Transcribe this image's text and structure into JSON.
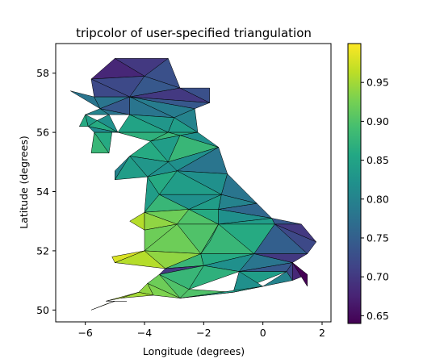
{
  "chart_data": {
    "type": "heatmap",
    "subtype": "tripcolor",
    "title": "tripcolor of user-specified triangulation",
    "xlabel": "Longitude (degrees)",
    "ylabel": "Latitude (degrees)",
    "xlim": [
      -7.0,
      2.3
    ],
    "ylim": [
      49.6,
      59.0
    ],
    "xticks": [
      -6,
      -4,
      -2,
      0,
      2
    ],
    "xtick_labels": [
      "−6",
      "−4",
      "−2",
      "0",
      "2"
    ],
    "yticks": [
      50,
      52,
      54,
      56,
      58
    ],
    "ytick_labels": [
      "50",
      "52",
      "54",
      "56",
      "58"
    ],
    "colormap": "viridis",
    "clim": [
      0.64,
      1.0
    ],
    "colorbar_ticks": [
      0.65,
      0.7,
      0.75,
      0.8,
      0.85,
      0.9,
      0.95
    ],
    "colorbar_tick_labels": [
      "0.65",
      "0.70",
      "0.75",
      "0.80",
      "0.85",
      "0.90",
      "0.95"
    ],
    "edge_color": "#000000",
    "points": [
      [
        -5.0,
        58.5
      ],
      [
        -3.2,
        58.5
      ],
      [
        -4.0,
        57.9
      ],
      [
        -5.8,
        57.8
      ],
      [
        -4.5,
        57.2
      ],
      [
        -2.8,
        57.5
      ],
      [
        -1.8,
        57.5
      ],
      [
        -1.8,
        57.0
      ],
      [
        -5.7,
        57.2
      ],
      [
        -6.5,
        57.4
      ],
      [
        -5.5,
        56.8
      ],
      [
        -6.0,
        56.6
      ],
      [
        -5.2,
        56.6
      ],
      [
        -4.5,
        56.6
      ],
      [
        -3.0,
        56.5
      ],
      [
        -2.3,
        56.8
      ],
      [
        -5.6,
        56.4
      ],
      [
        -6.2,
        56.2
      ],
      [
        -5.9,
        56.2
      ],
      [
        -4.9,
        56.0
      ],
      [
        -3.2,
        56.0
      ],
      [
        -2.2,
        56.0
      ],
      [
        -5.7,
        56.0
      ],
      [
        -5.1,
        56.0
      ],
      [
        -5.8,
        55.3
      ],
      [
        -5.2,
        55.3
      ],
      [
        -3.8,
        55.7
      ],
      [
        -2.8,
        55.9
      ],
      [
        -1.5,
        55.5
      ],
      [
        -4.5,
        55.2
      ],
      [
        -3.2,
        55.0
      ],
      [
        -5.0,
        54.7
      ],
      [
        -3.9,
        54.5
      ],
      [
        -2.9,
        54.7
      ],
      [
        -1.2,
        54.6
      ],
      [
        -5.0,
        54.4
      ],
      [
        -3.5,
        53.9
      ],
      [
        -1.4,
        53.9
      ],
      [
        -0.2,
        53.6
      ],
      [
        -2.5,
        53.4
      ],
      [
        -1.5,
        53.4
      ],
      [
        0.3,
        53.1
      ],
      [
        -4.0,
        53.3
      ],
      [
        -2.9,
        52.9
      ],
      [
        -1.5,
        52.9
      ],
      [
        -4.5,
        53.0
      ],
      [
        -4.0,
        52.7
      ],
      [
        0.4,
        52.9
      ],
      [
        1.3,
        52.9
      ],
      [
        1.8,
        52.3
      ],
      [
        -4.0,
        52.0
      ],
      [
        -2.1,
        51.9
      ],
      [
        -0.3,
        51.9
      ],
      [
        1.5,
        51.9
      ],
      [
        1.0,
        51.6
      ],
      [
        -5.1,
        51.8
      ],
      [
        -3.3,
        51.4
      ],
      [
        -2.0,
        51.5
      ],
      [
        -0.8,
        51.3
      ],
      [
        0.8,
        51.3
      ],
      [
        1.0,
        51.0
      ],
      [
        1.5,
        51.2
      ],
      [
        1.5,
        50.8
      ],
      [
        -5.0,
        51.6
      ],
      [
        -3.5,
        51.2
      ],
      [
        -2.5,
        50.7
      ],
      [
        -1.0,
        50.6
      ],
      [
        0.0,
        50.8
      ],
      [
        -3.9,
        50.9
      ],
      [
        -4.2,
        50.6
      ],
      [
        -5.8,
        50.0
      ],
      [
        -5.0,
        50.3
      ],
      [
        -4.6,
        50.3
      ],
      [
        -2.8,
        50.4
      ],
      [
        -3.7,
        50.5
      ],
      [
        -4.8,
        50.4
      ],
      [
        -5.3,
        50.3
      ],
      [
        -5.3,
        50.2
      ],
      [
        -1.8,
        52.3
      ]
    ],
    "triangles": [
      [
        0,
        1,
        2
      ],
      [
        0,
        3,
        2
      ],
      [
        3,
        4,
        2
      ],
      [
        2,
        4,
        5
      ],
      [
        2,
        1,
        5
      ],
      [
        5,
        6,
        7
      ],
      [
        4,
        5,
        7
      ],
      [
        3,
        8,
        4
      ],
      [
        9,
        8,
        10
      ],
      [
        8,
        10,
        4
      ],
      [
        10,
        11,
        12
      ],
      [
        10,
        12,
        13
      ],
      [
        10,
        4,
        13
      ],
      [
        4,
        13,
        14
      ],
      [
        4,
        14,
        15
      ],
      [
        4,
        15,
        7
      ],
      [
        11,
        17,
        18
      ],
      [
        11,
        16,
        18
      ],
      [
        12,
        16,
        19
      ],
      [
        16,
        18,
        19
      ],
      [
        13,
        14,
        20
      ],
      [
        14,
        15,
        21
      ],
      [
        14,
        20,
        21
      ],
      [
        13,
        19,
        20
      ],
      [
        18,
        22,
        19
      ],
      [
        22,
        24,
        25
      ],
      [
        22,
        23,
        25
      ],
      [
        19,
        20,
        26
      ],
      [
        20,
        21,
        27
      ],
      [
        20,
        26,
        27
      ],
      [
        21,
        27,
        28
      ],
      [
        26,
        27,
        30
      ],
      [
        27,
        28,
        30
      ],
      [
        26,
        29,
        30
      ],
      [
        29,
        31,
        35
      ],
      [
        29,
        30,
        32
      ],
      [
        29,
        32,
        35
      ],
      [
        30,
        32,
        33
      ],
      [
        30,
        28,
        33
      ],
      [
        28,
        33,
        34
      ],
      [
        32,
        33,
        36
      ],
      [
        33,
        34,
        37
      ],
      [
        33,
        36,
        37
      ],
      [
        34,
        37,
        38
      ],
      [
        32,
        36,
        42
      ],
      [
        36,
        37,
        39
      ],
      [
        37,
        39,
        40
      ],
      [
        37,
        38,
        40
      ],
      [
        38,
        40,
        41
      ],
      [
        36,
        42,
        39
      ],
      [
        42,
        45,
        46
      ],
      [
        42,
        46,
        43
      ],
      [
        42,
        39,
        43
      ],
      [
        39,
        43,
        44
      ],
      [
        39,
        40,
        44
      ],
      [
        40,
        44,
        41
      ],
      [
        44,
        41,
        47
      ],
      [
        41,
        47,
        48
      ],
      [
        47,
        48,
        49
      ],
      [
        43,
        44,
        51
      ],
      [
        44,
        47,
        52
      ],
      [
        44,
        51,
        52
      ],
      [
        47,
        49,
        53
      ],
      [
        47,
        52,
        53
      ],
      [
        52,
        53,
        54
      ],
      [
        46,
        43,
        50
      ],
      [
        43,
        51,
        50
      ],
      [
        50,
        55,
        63
      ],
      [
        50,
        63,
        56
      ],
      [
        50,
        51,
        56
      ],
      [
        51,
        56,
        57
      ],
      [
        51,
        52,
        57
      ],
      [
        52,
        57,
        58
      ],
      [
        52,
        54,
        58
      ],
      [
        54,
        58,
        59
      ],
      [
        54,
        59,
        60
      ],
      [
        54,
        60,
        61
      ],
      [
        54,
        61,
        62
      ],
      [
        56,
        57,
        64
      ],
      [
        57,
        58,
        65
      ],
      [
        58,
        59,
        66
      ],
      [
        59,
        60,
        67
      ],
      [
        58,
        66,
        67
      ],
      [
        57,
        64,
        65
      ],
      [
        64,
        65,
        73
      ],
      [
        64,
        68,
        73
      ],
      [
        68,
        69,
        74
      ],
      [
        68,
        73,
        74
      ],
      [
        69,
        74,
        75
      ],
      [
        69,
        75,
        76
      ],
      [
        70,
        71,
        77
      ],
      [
        71,
        72,
        76
      ],
      [
        65,
        66,
        73
      ],
      [
        66,
        67,
        73
      ],
      [
        44,
        51,
        78
      ]
    ],
    "values": [
      0.7,
      0.68,
      0.72,
      0.74,
      0.73,
      0.73,
      0.7,
      0.72,
      0.78,
      0.78,
      0.8,
      0.78,
      0.74,
      0.78,
      0.79,
      0.74,
      0.86,
      0.84,
      0.82,
      0.86,
      0.83,
      0.8,
      0.84,
      0.85,
      0.81,
      0.88,
      0.86,
      0.87,
      0.86,
      0.88,
      0.82,
      0.84,
      0.88,
      0.86,
      0.8,
      0.83,
      0.84,
      0.82,
      0.82,
      0.78,
      0.86,
      0.82,
      0.84,
      0.78,
      0.84,
      0.82,
      0.84,
      0.8,
      0.76,
      0.88,
      0.96,
      0.94,
      0.92,
      0.9,
      0.86,
      0.82,
      0.84,
      0.74,
      0.7,
      0.9,
      0.86,
      0.88,
      0.72,
      0.75,
      0.7,
      0.92,
      0.92,
      0.98,
      0.96,
      0.94,
      0.88,
      0.86,
      0.82,
      0.78,
      0.74,
      0.72,
      0.68,
      0.64,
      0.7,
      0.87,
      0.84,
      0.8,
      0.82,
      0.88,
      0.9,
      0.92,
      0.94,
      0.93,
      0.95,
      0.96,
      0.96,
      0.95,
      0.9,
      0.84,
      0.88
    ]
  }
}
